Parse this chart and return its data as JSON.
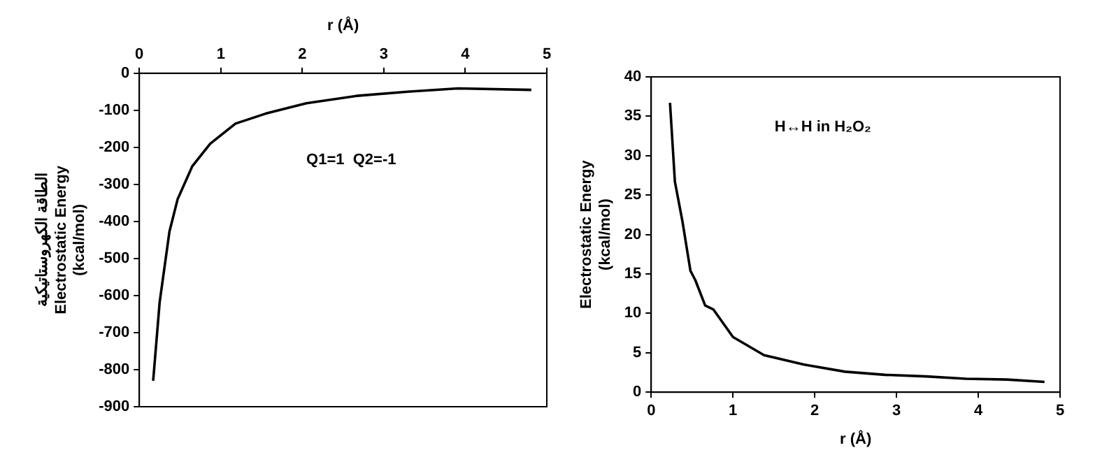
{
  "chart_data": [
    {
      "type": "line",
      "xlabel": "r (Å)",
      "ylabel": "الطاقة الكهروستاتيكية\nElectrostatic Energy\n(kcal/mol)",
      "annotations": [
        "Q1=1  Q2=-1"
      ],
      "xlim": [
        0,
        5
      ],
      "xticks": [
        0,
        1,
        2,
        3,
        4,
        5
      ],
      "ylim": [
        -900,
        0
      ],
      "yticks": [
        -900,
        -800,
        -700,
        -600,
        -500,
        -400,
        -300,
        -200,
        -100,
        0
      ],
      "grid": false,
      "legend": false,
      "marker": "none",
      "line_style": "solid",
      "series": [
        {
          "color": "#000000",
          "x": [
            0.17,
            0.25,
            0.37,
            0.47,
            0.65,
            0.87,
            1.18,
            1.55,
            2.05,
            2.67,
            3.29,
            3.91,
            4.81
          ],
          "values": [
            -830,
            -617,
            -427,
            -340,
            -251,
            -190,
            -136,
            -109,
            -81,
            -61,
            -50,
            -41,
            -45
          ]
        }
      ]
    },
    {
      "type": "line",
      "xlabel": "r (Å)",
      "ylabel": "Electrostatic Energy\n(kcal/mol)",
      "annotations": [
        "H↔H in H₂O₂"
      ],
      "xlim": [
        0,
        5
      ],
      "xticks": [
        0,
        1,
        2,
        3,
        4,
        5
      ],
      "ylim": [
        0,
        40
      ],
      "yticks": [
        0,
        5,
        10,
        15,
        20,
        25,
        30,
        35,
        40
      ],
      "grid": false,
      "legend": false,
      "marker": "none",
      "line_style": "solid",
      "series": [
        {
          "color": "#000000",
          "x": [
            0.23,
            0.29,
            0.38,
            0.48,
            0.54,
            0.66,
            0.76,
            1.0,
            1.38,
            1.87,
            2.37,
            2.86,
            3.36,
            3.85,
            4.35,
            4.81
          ],
          "values": [
            36.7,
            26.7,
            21.8,
            15.4,
            14.2,
            11.0,
            10.5,
            7.0,
            4.7,
            3.5,
            2.6,
            2.2,
            2.0,
            1.7,
            1.6,
            1.3
          ]
        }
      ]
    }
  ]
}
